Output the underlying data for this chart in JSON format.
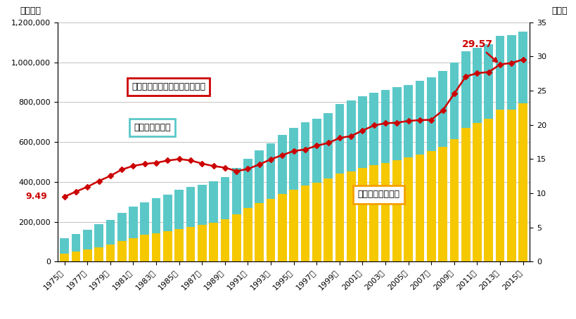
{
  "years": [
    1975,
    1976,
    1977,
    1978,
    1979,
    1980,
    1981,
    1982,
    1983,
    1984,
    1985,
    1986,
    1987,
    1988,
    1989,
    1990,
    1991,
    1992,
    1993,
    1994,
    1995,
    1996,
    1997,
    1998,
    1999,
    2000,
    2001,
    2002,
    2003,
    2004,
    2005,
    2006,
    2007,
    2008,
    2009,
    2010,
    2011,
    2012,
    2013,
    2014,
    2015
  ],
  "total_benefits": [
    117171,
    138590,
    159739,
    186481,
    209705,
    243705,
    275491,
    298464,
    317002,
    335588,
    358937,
    374506,
    385684,
    401524,
    423737,
    470219,
    516501,
    557742,
    594090,
    634971,
    669941,
    698541,
    717988,
    744966,
    790772,
    806862,
    830532,
    847027,
    860855,
    873949,
    887083,
    907034,
    925438,
    957455,
    996704,
    1053980,
    1072299,
    1090669,
    1131254,
    1135659,
    1153882
  ],
  "elderly_benefits": [
    39819,
    49870,
    60210,
    73211,
    85710,
    102897,
    118919,
    133699,
    142899,
    152820,
    162885,
    175059,
    182598,
    195041,
    211697,
    238422,
    269087,
    294397,
    313982,
    337999,
    361059,
    381135,
    396029,
    415133,
    440952,
    452767,
    469889,
    483464,
    492844,
    507195,
    522033,
    535838,
    552735,
    577048,
    614490,
    669039,
    695996,
    714890,
    763346,
    762978,
    794547
  ],
  "ratio": [
    9.49,
    10.24,
    10.94,
    11.79,
    12.54,
    13.46,
    14.0,
    14.29,
    14.46,
    14.78,
    14.99,
    14.8,
    14.34,
    13.97,
    13.75,
    13.23,
    13.55,
    14.22,
    14.96,
    15.58,
    16.17,
    16.41,
    16.95,
    17.35,
    18.08,
    18.37,
    19.17,
    19.92,
    20.24,
    20.32,
    20.58,
    20.7,
    20.74,
    22.12,
    24.58,
    27.08,
    27.56,
    27.73,
    28.84,
    29.05,
    29.57
  ],
  "bar_color_total": "#5BC8C8",
  "bar_color_elderly": "#F5C800",
  "line_color": "#CC0000",
  "ylim_left": [
    0,
    1200000
  ],
  "ylim_right": [
    0,
    35
  ],
  "yticks_left": [
    0,
    200000,
    400000,
    600000,
    800000,
    1000000,
    1200000
  ],
  "yticks_right": [
    0,
    5,
    10,
    15,
    20,
    25,
    30,
    35
  ],
  "ylabel_left": "（億円）",
  "ylabel_right": "（％）",
  "annotation_start": "9.49",
  "annotation_end": "29.57",
  "label_total": "社会保障給付費",
  "label_elderly": "高齢者関係給付金",
  "label_ratio": "社会保障給付費の対国民所得比",
  "background_color": "#FFFFFF",
  "box_color_ratio_edge": "#CC0000",
  "box_color_total_edge": "#5BC8C8",
  "box_color_elderly_edge": "#F5A000"
}
